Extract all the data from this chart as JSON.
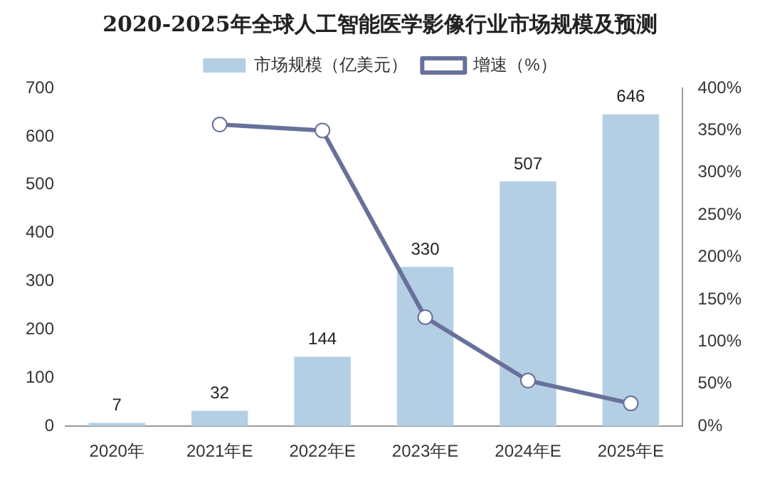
{
  "chart_data": {
    "type": "bar",
    "title": "2020-2025年全球人工智能医学影像行业市场规模及预测",
    "categories": [
      "2020年",
      "2021年E",
      "2022年E",
      "2023年E",
      "2024年E",
      "2025年E"
    ],
    "series": [
      {
        "name": "市场规模（亿美元）",
        "color": "#b4cfe4",
        "values": [
          7,
          32,
          144,
          330,
          507,
          646
        ],
        "value_labels": [
          "7",
          "32",
          "144",
          "330",
          "507",
          "646"
        ]
      },
      {
        "name": "增速（%）",
        "type": "line",
        "axis": "y2",
        "color": "#67719a",
        "marker": "circle",
        "values": [
          null,
          357,
          350,
          129,
          54,
          27
        ]
      }
    ],
    "ylim": [
      0,
      700
    ],
    "yticks": [
      0,
      100,
      200,
      300,
      400,
      500,
      600,
      700
    ],
    "y2lim": [
      0,
      400
    ],
    "y2ticks": [
      {
        "value": 0,
        "label": "0%"
      },
      {
        "value": 50,
        "label": "50%"
      },
      {
        "value": 100,
        "label": "100%"
      },
      {
        "value": 150,
        "label": "150%"
      },
      {
        "value": 200,
        "label": "200%"
      },
      {
        "value": 250,
        "label": "250%"
      },
      {
        "value": 300,
        "label": "300%"
      },
      {
        "value": 350,
        "label": "350%"
      },
      {
        "value": 400,
        "label": "400%"
      }
    ],
    "grid": false,
    "legend": "top"
  }
}
